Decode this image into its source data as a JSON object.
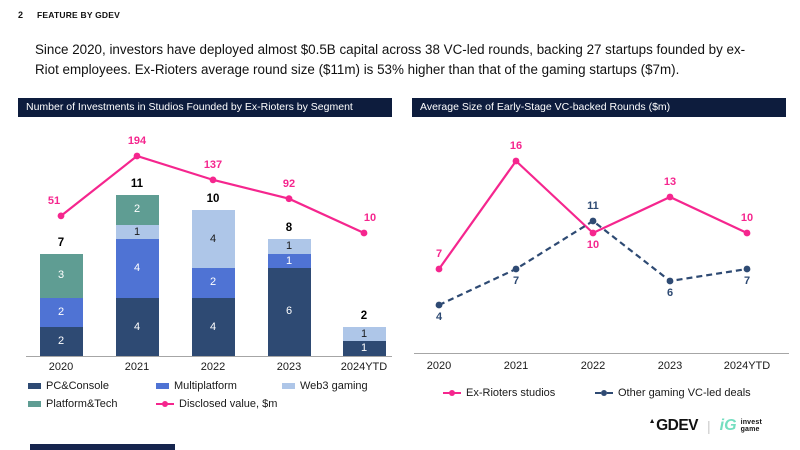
{
  "header": {
    "page_number": "2",
    "kicker": "FEATURE BY GDEV",
    "summary": "Since 2020, investors have deployed almost $0.5B capital across 38 VC-led rounds, backing 27 startups founded by ex-Riot employees. Ex-Rioters average round size ($11m) is 53% higher than that of the gaming startups ($7m)."
  },
  "colors": {
    "title_band": "#0D1C3D",
    "pink": "#F5268E",
    "navy": "#2E4A73",
    "blue": "#4F73D4",
    "light_blue": "#AEC6E8",
    "teal": "#5F9D93",
    "axis": "#A6A6A6",
    "ig_mint": "#74DEC0"
  },
  "chart_data": [
    {
      "type": "bar",
      "variant": "stacked-with-line-overlay",
      "title": "Number of Investments in Studios Founded by Ex-Rioters by Segment",
      "categories": [
        "2020",
        "2021",
        "2022",
        "2023",
        "2024YTD"
      ],
      "series": [
        {
          "name": "PC&Console",
          "color": "#2E4A73",
          "label_color": "#FFFFFF",
          "values": [
            2,
            4,
            4,
            6,
            1
          ]
        },
        {
          "name": "Multiplatform",
          "color": "#4F73D4",
          "label_color": "#FFFFFF",
          "values": [
            2,
            4,
            2,
            1,
            0
          ]
        },
        {
          "name": "Web3 gaming",
          "color": "#AEC6E8",
          "label_color": "#1A1A1A",
          "values": [
            0,
            1,
            4,
            1,
            1
          ]
        },
        {
          "name": "Platform&Tech",
          "color": "#5F9D93",
          "label_color": "#FFFFFF",
          "values": [
            3,
            2,
            0,
            0,
            0
          ]
        }
      ],
      "totals": [
        7,
        11,
        10,
        8,
        2
      ],
      "line_series": {
        "name": "Disclosed value, $m",
        "color": "#F5268E",
        "values": [
          51,
          194,
          137,
          92,
          10
        ]
      },
      "legend_position": "bottom",
      "ylabel": "",
      "ylim": [
        0,
        12
      ]
    },
    {
      "type": "line",
      "title": "Average Size of Early-Stage VC-backed Rounds ($m)",
      "categories": [
        "2020",
        "2021",
        "2022",
        "2023",
        "2024YTD"
      ],
      "series": [
        {
          "name": "Ex-Rioters studios",
          "color": "#F5268E",
          "style": "solid",
          "values": [
            7,
            16,
            10,
            13,
            10
          ],
          "label_placement": [
            "above",
            "above",
            "below",
            "above",
            "above"
          ]
        },
        {
          "name": "Other gaming VC-led deals",
          "color": "#2E4A73",
          "style": "dashed",
          "values": [
            4,
            7,
            11,
            6,
            7
          ],
          "label_placement": [
            "below",
            "below",
            "above",
            "below",
            "below"
          ]
        }
      ],
      "legend_position": "bottom",
      "ylabel": "",
      "ylim": [
        0,
        18
      ]
    }
  ],
  "footer": {
    "gdev_logo": "GDEV",
    "divider": "|",
    "ig_mark": "iG",
    "invest_game_line1": "invest",
    "invest_game_line2": "game"
  }
}
